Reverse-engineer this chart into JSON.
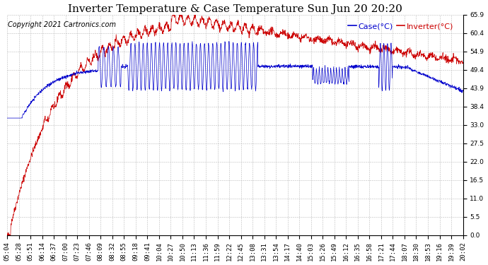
{
  "title": "Inverter Temperature & Case Temperature Sun Jun 20 20:20",
  "copyright": "Copyright 2021 Cartronics.com",
  "legend_case": "Case(°C)",
  "legend_inverter": "Inverter(°C)",
  "case_color": "#0000cc",
  "inverter_color": "#cc0000",
  "background_color": "#ffffff",
  "grid_color": "#bbbbbb",
  "ylim": [
    0.0,
    65.9
  ],
  "yticks": [
    0.0,
    5.5,
    11.0,
    16.5,
    22.0,
    27.5,
    33.0,
    38.4,
    43.9,
    49.4,
    54.9,
    60.4,
    65.9
  ],
  "title_fontsize": 11,
  "copyright_fontsize": 7,
  "legend_fontsize": 8,
  "tick_fontsize": 6.5,
  "x_tick_labels": [
    "05:04",
    "05:28",
    "05:51",
    "06:14",
    "06:37",
    "07:00",
    "07:23",
    "07:46",
    "08:09",
    "08:32",
    "08:55",
    "09:18",
    "09:41",
    "10:04",
    "10:27",
    "10:50",
    "11:13",
    "11:36",
    "11:59",
    "12:22",
    "12:45",
    "13:08",
    "13:31",
    "13:54",
    "14:17",
    "14:40",
    "15:03",
    "15:26",
    "15:49",
    "16:12",
    "16:35",
    "16:58",
    "17:21",
    "17:44",
    "18:07",
    "18:30",
    "18:53",
    "19:16",
    "19:39",
    "20:02"
  ],
  "n_points": 2000
}
